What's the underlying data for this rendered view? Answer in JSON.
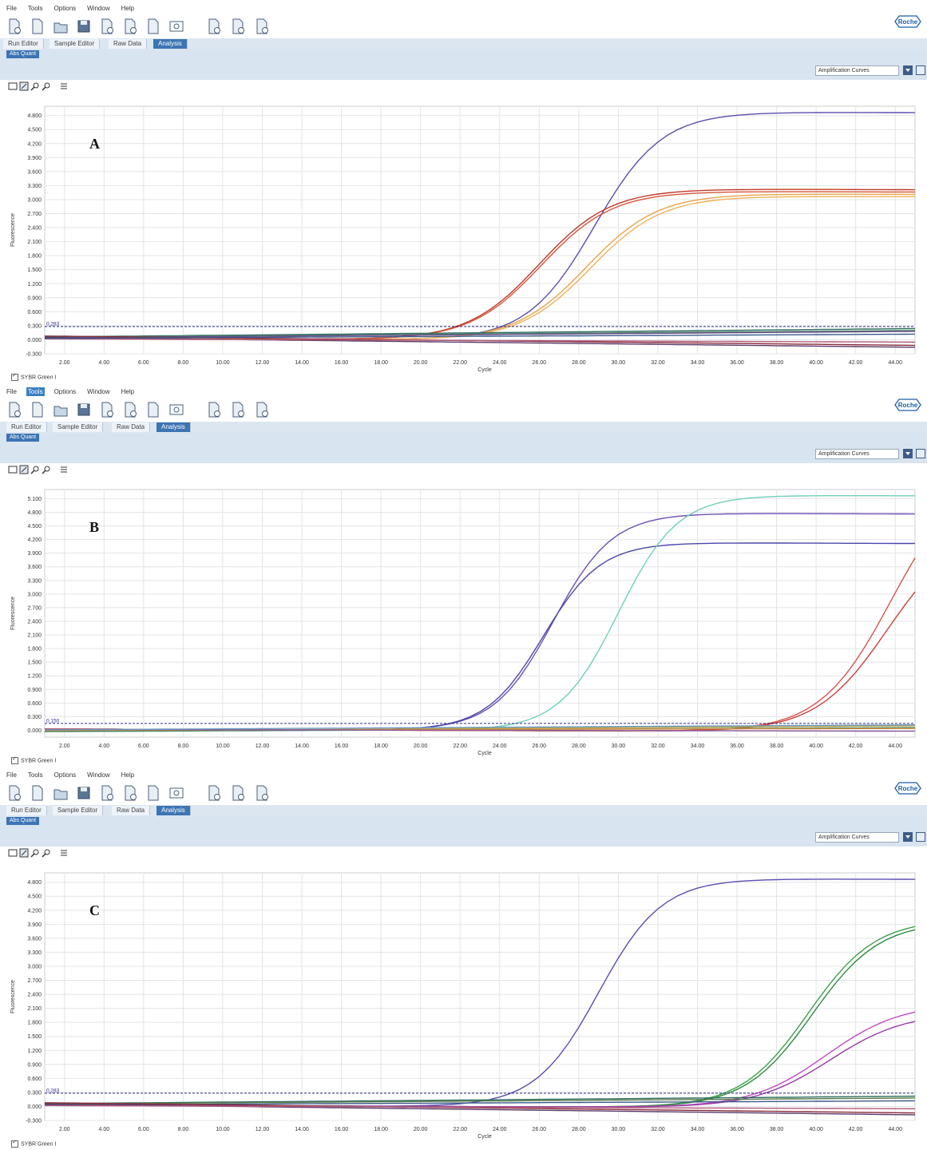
{
  "app": {
    "menu": [
      "File",
      "Tools",
      "Options",
      "Window",
      "Help"
    ],
    "brand": "Roche",
    "tabs": [
      "Run Editor",
      "Sample Editor",
      "Raw Data",
      "Analysis"
    ],
    "active_tab": "Analysis",
    "subtab": "Abs Quant",
    "view_select": "Amplification Curves",
    "footer_check": "SYBR Green I",
    "toolbar_icons": [
      "new-run-icon",
      "new-from-template-icon",
      "open-icon",
      "save-icon",
      "export-icon",
      "import-icon",
      "print-icon",
      "zoom-window-icon",
      "add-sample-icon",
      "remove-sample-icon",
      "clear-sample-icon"
    ],
    "chart_tools": [
      "select-tool-icon",
      "zoom-box-icon",
      "zoom-in-icon",
      "zoom-out-icon",
      "legend-icon"
    ]
  },
  "panels": [
    {
      "label": "A",
      "active_menu": "",
      "threshold_label": "0.283"
    },
    {
      "label": "B",
      "active_menu": "Tools",
      "threshold_label": "0.150"
    },
    {
      "label": "C",
      "active_menu": "",
      "threshold_label": "0.283"
    }
  ],
  "chart_data": [
    {
      "type": "line",
      "title": "",
      "xlabel": "Cycle",
      "ylabel": "Fluorescence",
      "xlim": [
        1,
        45
      ],
      "ylim": [
        -0.3,
        5.0
      ],
      "xticks": [
        "2.00",
        "4.00",
        "6.00",
        "8.00",
        "10.00",
        "12.00",
        "14.00",
        "16.00",
        "18.00",
        "20.00",
        "22.00",
        "24.00",
        "26.00",
        "28.00",
        "30.00",
        "32.00",
        "34.00",
        "36.00",
        "38.00",
        "40.00",
        "42.00",
        "44.00"
      ],
      "yticks": [
        "-0.300",
        "0.000",
        "0.300",
        "0.600",
        "0.900",
        "1.200",
        "1.500",
        "1.800",
        "2.100",
        "2.400",
        "2.700",
        "3.000",
        "3.300",
        "3.600",
        "3.900",
        "4.200",
        "4.500",
        "4.800"
      ],
      "grid": true,
      "threshold": 0.283,
      "series": [
        {
          "color": "#5a4fb0",
          "kind": "sig",
          "plateau": 4.9,
          "mid": 28.8,
          "slope": 1.7
        },
        {
          "color": "#c0392b",
          "kind": "sig",
          "plateau": 3.25,
          "mid": 26.0,
          "slope": 1.8
        },
        {
          "color": "#d4553a",
          "kind": "sig",
          "plateau": 3.2,
          "mid": 26.1,
          "slope": 1.8
        },
        {
          "color": "#e8a34a",
          "kind": "sig",
          "plateau": 3.15,
          "mid": 28.4,
          "slope": 1.8
        },
        {
          "color": "#f0b05c",
          "kind": "sig",
          "plateau": 3.1,
          "mid": 28.6,
          "slope": 1.8
        },
        {
          "color": "#2e6b5c",
          "kind": "flat",
          "start": 0.06,
          "end": 0.24
        },
        {
          "color": "#4a8a6a",
          "kind": "flat",
          "start": 0.05,
          "end": 0.2
        },
        {
          "color": "#6a4a8a",
          "kind": "flat",
          "start": 0.04,
          "end": 0.18
        },
        {
          "color": "#8a2a3a",
          "kind": "flat",
          "start": 0.08,
          "end": -0.12
        },
        {
          "color": "#5a3a6a",
          "kind": "flat",
          "start": 0.05,
          "end": -0.16
        },
        {
          "color": "#b05a7a",
          "kind": "flat",
          "start": 0.02,
          "end": -0.05
        },
        {
          "color": "#3a5a8a",
          "kind": "flat",
          "start": 0.03,
          "end": 0.12
        }
      ]
    },
    {
      "type": "line",
      "title": "",
      "xlabel": "Cycle",
      "ylabel": "Fluorescence",
      "xlim": [
        1,
        45
      ],
      "ylim": [
        -0.15,
        5.3
      ],
      "xticks": [
        "2.00",
        "4.00",
        "6.00",
        "8.00",
        "10.00",
        "12.00",
        "14.00",
        "16.00",
        "18.00",
        "20.00",
        "22.00",
        "24.00",
        "26.00",
        "28.00",
        "30.00",
        "32.00",
        "34.00",
        "36.00",
        "38.00",
        "40.00",
        "42.00",
        "44.00"
      ],
      "yticks": [
        "0.000",
        "0.300",
        "0.600",
        "0.900",
        "1.200",
        "1.500",
        "1.800",
        "2.100",
        "2.400",
        "2.700",
        "3.000",
        "3.300",
        "3.600",
        "3.900",
        "4.200",
        "4.500",
        "4.800",
        "5.100"
      ],
      "grid": true,
      "threshold": 0.15,
      "series": [
        {
          "color": "#6a4fb5",
          "kind": "sig",
          "plateau": 4.8,
          "mid": 26.7,
          "slope": 1.5
        },
        {
          "color": "#4a47a8",
          "kind": "sig",
          "plateau": 4.15,
          "mid": 26.2,
          "slope": 1.45
        },
        {
          "color": "#6ecfb8",
          "kind": "sig",
          "plateau": 5.2,
          "mid": 30.0,
          "slope": 1.5
        },
        {
          "color": "#d9534f",
          "kind": "sig",
          "plateau": 5.8,
          "mid": 43.8,
          "slope": 1.8
        },
        {
          "color": "#c9403a",
          "kind": "sig",
          "plateau": 4.5,
          "mid": 43.6,
          "slope": 1.8
        },
        {
          "color": "#b8a040",
          "kind": "flat",
          "start": -0.02,
          "end": 0.1
        },
        {
          "color": "#4a8a6a",
          "kind": "flat",
          "start": -0.03,
          "end": 0.06
        },
        {
          "color": "#d48a3a",
          "kind": "flat",
          "start": 0.0,
          "end": 0.04
        },
        {
          "color": "#8a5aa0",
          "kind": "flat",
          "start": 0.02,
          "end": -0.02
        },
        {
          "color": "#6a9ac0",
          "kind": "flat",
          "start": 0.01,
          "end": 0.12
        }
      ]
    },
    {
      "type": "line",
      "title": "",
      "xlabel": "Cycle",
      "ylabel": "Fluorescence",
      "xlim": [
        1,
        45
      ],
      "ylim": [
        -0.3,
        5.0
      ],
      "xticks": [
        "2.00",
        "4.00",
        "6.00",
        "8.00",
        "10.00",
        "12.00",
        "14.00",
        "16.00",
        "18.00",
        "20.00",
        "22.00",
        "24.00",
        "26.00",
        "28.00",
        "30.00",
        "32.00",
        "34.00",
        "36.00",
        "38.00",
        "40.00",
        "42.00",
        "44.00"
      ],
      "yticks": [
        "-0.300",
        "0.000",
        "0.300",
        "0.600",
        "0.900",
        "1.200",
        "1.500",
        "1.800",
        "2.100",
        "2.400",
        "2.700",
        "3.000",
        "3.300",
        "3.600",
        "3.900",
        "4.200",
        "4.500",
        "4.800"
      ],
      "grid": true,
      "threshold": 0.283,
      "series": [
        {
          "color": "#5a4fb0",
          "kind": "sig",
          "plateau": 4.9,
          "mid": 29.0,
          "slope": 1.6
        },
        {
          "color": "#3da04a",
          "kind": "sig",
          "plateau": 4.05,
          "mid": 39.6,
          "slope": 1.7
        },
        {
          "color": "#2e8a3e",
          "kind": "sig",
          "plateau": 4.0,
          "mid": 39.8,
          "slope": 1.7
        },
        {
          "color": "#c04ac0",
          "kind": "sig",
          "plateau": 2.25,
          "mid": 40.5,
          "slope": 1.9
        },
        {
          "color": "#9a3aa8",
          "kind": "sig",
          "plateau": 2.05,
          "mid": 40.7,
          "slope": 1.9
        },
        {
          "color": "#2e6b5c",
          "kind": "flat",
          "start": 0.06,
          "end": 0.22
        },
        {
          "color": "#5a7a4a",
          "kind": "flat",
          "start": 0.05,
          "end": 0.18
        },
        {
          "color": "#3a5a8a",
          "kind": "flat",
          "start": 0.03,
          "end": 0.12
        },
        {
          "color": "#8a2a3a",
          "kind": "flat",
          "start": 0.08,
          "end": -0.14
        },
        {
          "color": "#5a3a6a",
          "kind": "flat",
          "start": 0.05,
          "end": -0.18
        },
        {
          "color": "#b05a7a",
          "kind": "flat",
          "start": 0.02,
          "end": -0.05
        }
      ]
    }
  ]
}
